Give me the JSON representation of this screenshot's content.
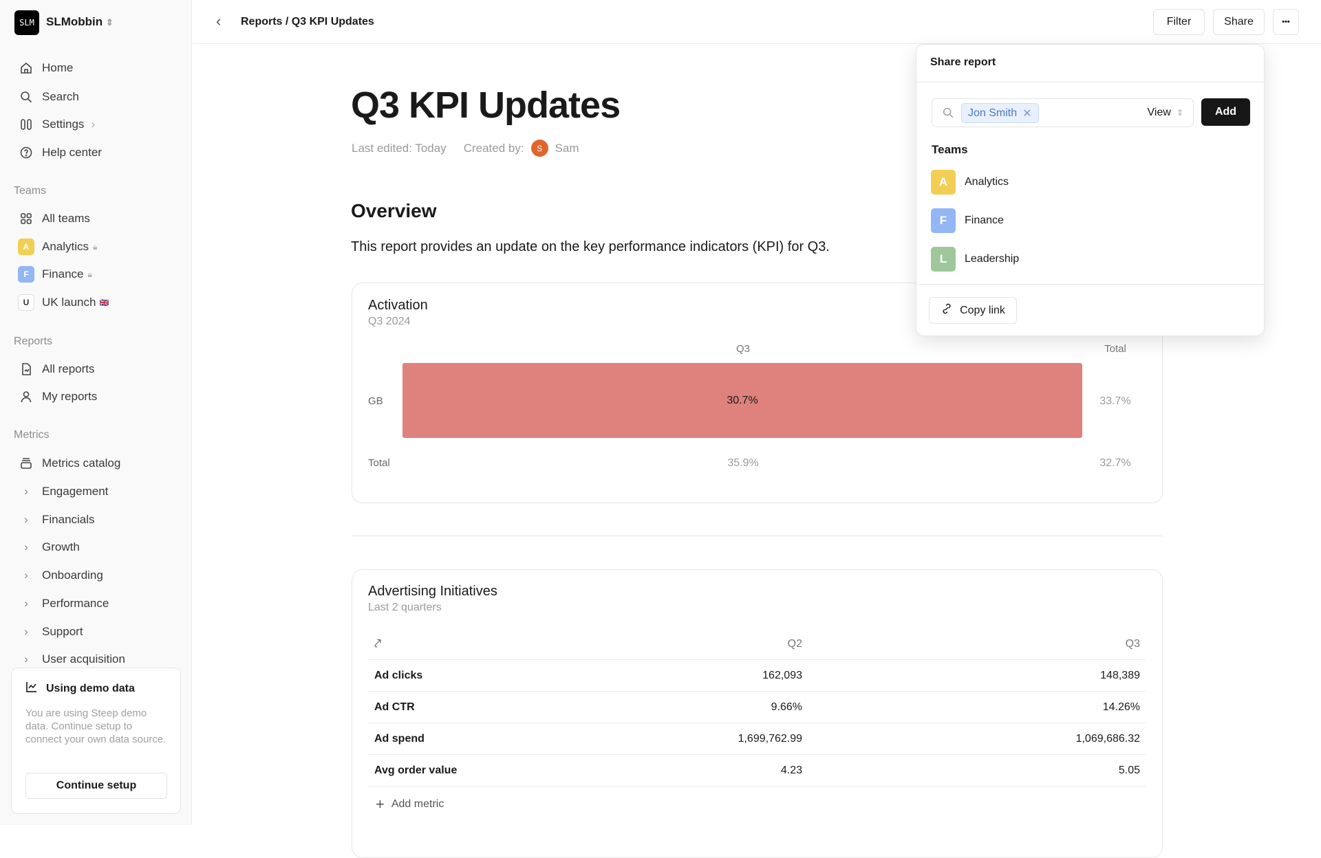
{
  "workspace": {
    "logo_text": "SLM",
    "name": "SLMobbin"
  },
  "nav": [
    {
      "label": "Home",
      "icon": "home-icon"
    },
    {
      "label": "Search",
      "icon": "search-icon"
    },
    {
      "label": "Settings",
      "icon": "settings-icon"
    },
    {
      "label": "Help center",
      "icon": "help-icon"
    }
  ],
  "teams": {
    "header": "Teams",
    "all": "All teams",
    "items": [
      {
        "letter": "A",
        "label": "Analytics",
        "color": "#f2cf54",
        "locked": true
      },
      {
        "letter": "F",
        "label": "Finance",
        "color": "#93b6f5",
        "locked": true
      },
      {
        "letter": "U",
        "label": "UK launch",
        "flag": "🇬🇧"
      }
    ]
  },
  "reports": {
    "header": "Reports",
    "items": [
      "All reports",
      "My reports"
    ]
  },
  "metrics": {
    "header": "Metrics",
    "catalog": "Metrics catalog",
    "items": [
      "Engagement",
      "Financials",
      "Growth",
      "Onboarding",
      "Performance",
      "Support",
      "User acquisition"
    ]
  },
  "demo": {
    "title": "Using demo data",
    "text": "You are using Steep demo data. Continue setup to connect your own data source.",
    "button": "Continue setup"
  },
  "topbar": {
    "breadcrumb": "Reports / Q3 KPI Updates",
    "filter": "Filter",
    "share": "Share",
    "more": "•••"
  },
  "page": {
    "title": "Q3 KPI Updates",
    "last_edited": "Last edited: Today",
    "created_by": "Created by:",
    "author_initial": "S",
    "author": "Sam",
    "overview": "Overview",
    "description": "This report provides an update on the key performance indicators (KPI) for Q3."
  },
  "activation": {
    "title": "Activation",
    "subtitle": "Q3 2024",
    "col_q3": "Q3",
    "col_total": "Total",
    "row_gb": "GB",
    "gb_q3": "30.7%",
    "gb_total": "33.7%",
    "row_total": "Total",
    "total_q3": "35.9%",
    "total_total": "32.7%",
    "bar_color": "#df817d"
  },
  "advertising": {
    "title": "Advertising Initiatives",
    "subtitle": "Last 2 quarters",
    "columns": [
      "Q2",
      "Q3"
    ],
    "rows": [
      [
        "Ad clicks",
        "162,093",
        "148,389"
      ],
      [
        "Ad CTR",
        "9.66%",
        "14.26%"
      ],
      [
        "Ad spend",
        "1,699,762.99",
        "1,069,686.32"
      ],
      [
        "Avg order value",
        "4.23",
        "5.05"
      ]
    ],
    "add_metric": "Add metric"
  },
  "share": {
    "title": "Share report",
    "chip": "Jon Smith",
    "permission": "View",
    "add": "Add",
    "teams_header": "Teams",
    "teams": [
      {
        "letter": "A",
        "label": "Analytics",
        "color": "#f2cf54"
      },
      {
        "letter": "F",
        "label": "Finance",
        "color": "#93b6f5"
      },
      {
        "letter": "L",
        "label": "Leadership",
        "color": "#9fc79b"
      }
    ],
    "copy_link": "Copy link"
  }
}
